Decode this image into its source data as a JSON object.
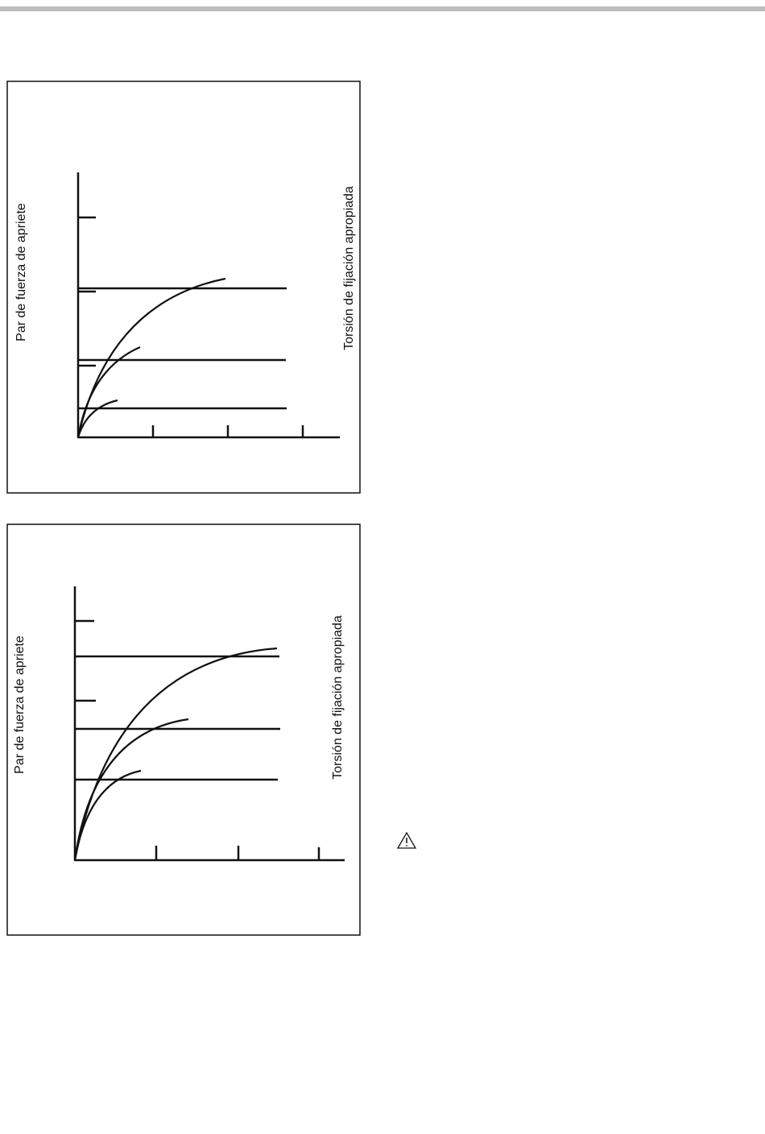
{
  "figures": [
    {
      "y_label": "Par de fuerza de apriete",
      "right_label": "Torsión de fijación apropiada"
    },
    {
      "y_label": "Par de fuerza de apriete",
      "right_label": "Torsión de fijación apropiada"
    }
  ]
}
